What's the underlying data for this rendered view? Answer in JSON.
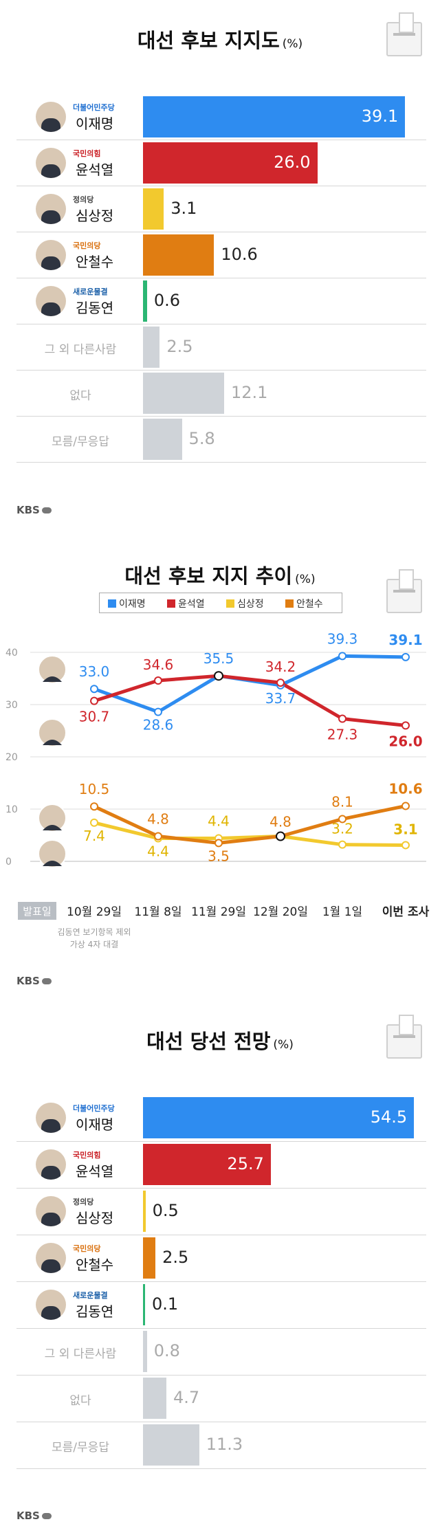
{
  "support": {
    "title": "대선 후보 지지도",
    "unit": "(%)",
    "rows": [
      {
        "party": "더불어민주당",
        "name": "이재명",
        "value": 39.1,
        "label": "39.1",
        "color": "#2e8cf0",
        "party_color": "#1f6fd0"
      },
      {
        "party": "국민의힘",
        "name": "윤석열",
        "value": 26.0,
        "label": "26.0",
        "color": "#d0262c",
        "party_color": "#c91c22"
      },
      {
        "party": "정의당",
        "name": "심상정",
        "value": 3.1,
        "label": "3.1",
        "color": "#f2c92e",
        "party_color": "#444444"
      },
      {
        "party": "국민의당",
        "name": "안철수",
        "value": 10.6,
        "label": "10.6",
        "color": "#e07d12",
        "party_color": "#d96f0c"
      },
      {
        "party": "새로운물결",
        "name": "김동연",
        "value": 0.6,
        "label": "0.6",
        "color": "#2bb673",
        "party_color": "#1a5fa8"
      },
      {
        "party": "",
        "name": "그 외 다른사람",
        "value": 2.5,
        "label": "2.5",
        "color": "#cfd3d8",
        "party_color": ""
      },
      {
        "party": "",
        "name": "없다",
        "value": 12.1,
        "label": "12.1",
        "color": "#cfd3d8",
        "party_color": ""
      },
      {
        "party": "",
        "name": "모름/무응답",
        "value": 5.8,
        "label": "5.8",
        "color": "#cfd3d8",
        "party_color": ""
      }
    ]
  },
  "trend": {
    "title": "대선 후보 지지 추이",
    "unit": "(%)",
    "legend": [
      {
        "name": "이재명",
        "color": "#2e8cf0"
      },
      {
        "name": "윤석열",
        "color": "#d0262c"
      },
      {
        "name": "심상정",
        "color": "#f2c92e"
      },
      {
        "name": "안철수",
        "color": "#e07d12"
      }
    ],
    "x_header": "발표일",
    "x": [
      "10월 29일",
      "11월 8일",
      "11월 29일",
      "12월 20일",
      "1월 1일",
      "이번 조사"
    ],
    "y_ticks": [
      "0",
      "10",
      "20",
      "30",
      "40"
    ],
    "footnote_line1": "김동연 보기항목 제외",
    "footnote_line2": "가상 4자 대결"
  },
  "forecast": {
    "title": "대선 당선 전망",
    "unit": "(%)",
    "rows": [
      {
        "party": "더불어민주당",
        "name": "이재명",
        "value": 54.5,
        "label": "54.5",
        "color": "#2e8cf0",
        "party_color": "#1f6fd0"
      },
      {
        "party": "국민의힘",
        "name": "윤석열",
        "value": 25.7,
        "label": "25.7",
        "color": "#d0262c",
        "party_color": "#c91c22"
      },
      {
        "party": "정의당",
        "name": "심상정",
        "value": 0.5,
        "label": "0.5",
        "color": "#f2c92e",
        "party_color": "#444444"
      },
      {
        "party": "국민의당",
        "name": "안철수",
        "value": 2.5,
        "label": "2.5",
        "color": "#e07d12",
        "party_color": "#d96f0c"
      },
      {
        "party": "새로운물결",
        "name": "김동연",
        "value": 0.1,
        "label": "0.1",
        "color": "#2bb673",
        "party_color": "#1a5fa8"
      },
      {
        "party": "",
        "name": "그 외 다른사람",
        "value": 0.8,
        "label": "0.8",
        "color": "#cfd3d8",
        "party_color": ""
      },
      {
        "party": "",
        "name": "없다",
        "value": 4.7,
        "label": "4.7",
        "color": "#cfd3d8",
        "party_color": ""
      },
      {
        "party": "",
        "name": "모름/무응답",
        "value": 11.3,
        "label": "11.3",
        "color": "#cfd3d8",
        "party_color": ""
      }
    ]
  },
  "brand": "KBS",
  "chart_data": [
    {
      "type": "bar",
      "title": "대선 후보 지지도 (%)",
      "categories": [
        "이재명",
        "윤석열",
        "심상정",
        "안철수",
        "김동연",
        "그 외 다른사람",
        "없다",
        "모름/무응답"
      ],
      "values": [
        39.1,
        26.0,
        3.1,
        10.6,
        0.6,
        2.5,
        12.1,
        5.8
      ]
    },
    {
      "type": "line",
      "title": "대선 후보 지지 추이 (%)",
      "x": [
        "10월 29일",
        "11월 8일",
        "11월 29일",
        "12월 20일",
        "1월 1일",
        "이번 조사"
      ],
      "ylim": [
        0,
        40
      ],
      "series": [
        {
          "name": "이재명",
          "values": [
            33.0,
            28.6,
            35.5,
            33.7,
            39.3,
            39.1
          ],
          "labels": [
            "33.0",
            "28.6",
            "35.5",
            "33.7",
            "39.3",
            "39.1"
          ],
          "color": "#2e8cf0"
        },
        {
          "name": "윤석열",
          "values": [
            30.7,
            34.6,
            35.5,
            34.2,
            27.3,
            26.0
          ],
          "labels": [
            "30.7",
            "34.6",
            "",
            "34.2",
            "27.3",
            "26.0"
          ],
          "color": "#d0262c"
        },
        {
          "name": "심상정",
          "values": [
            7.4,
            4.4,
            4.4,
            4.8,
            3.2,
            3.1
          ],
          "labels": [
            "7.4",
            "4.4",
            "4.4",
            "",
            "3.2",
            "3.1"
          ],
          "color": "#f2c92e"
        },
        {
          "name": "안철수",
          "values": [
            10.5,
            4.8,
            3.5,
            4.8,
            8.1,
            10.6
          ],
          "labels": [
            "10.5",
            "4.8",
            "3.5",
            "4.8",
            "8.1",
            "10.6"
          ],
          "color": "#e07d12"
        }
      ]
    },
    {
      "type": "bar",
      "title": "대선 당선 전망 (%)",
      "categories": [
        "이재명",
        "윤석열",
        "심상정",
        "안철수",
        "김동연",
        "그 외 다른사람",
        "없다",
        "모름/무응답"
      ],
      "values": [
        54.5,
        25.7,
        0.5,
        2.5,
        0.1,
        0.8,
        4.7,
        11.3
      ]
    }
  ]
}
